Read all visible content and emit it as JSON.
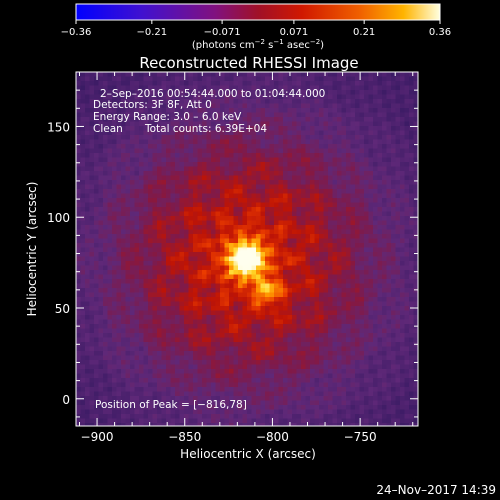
{
  "chart_data": {
    "type": "heatmap",
    "title": "Reconstructed RHESSI Image",
    "xlabel": "Heliocentric X (arcsec)",
    "ylabel": "Heliocentric Y (arcsec)",
    "xlim": [
      -912,
      -717
    ],
    "ylim": [
      -15,
      180
    ],
    "x_ticks": [
      -900,
      -850,
      -800,
      -750
    ],
    "y_ticks": [
      0,
      50,
      100,
      150
    ],
    "x_tick_labels": [
      "−900",
      "−850",
      "−800",
      "−750"
    ],
    "y_tick_labels": [
      "0",
      "50",
      "100",
      "150"
    ],
    "colorbar": {
      "ticks": [
        -0.36,
        -0.21,
        -0.071,
        0.071,
        0.21,
        0.36
      ],
      "tick_labels": [
        "−0.36",
        "−0.21",
        "−0.071",
        "0.071",
        "0.21",
        "0.36"
      ],
      "unit_main": "(photons cm",
      "unit_sup1": "−2",
      "unit_mid": " s",
      "unit_sup2": "−1",
      "unit_mid2": " asec",
      "unit_sup3": "−2",
      "unit_end": ")",
      "colormap": "blue-purple-red-yellow-white"
    },
    "annotations": {
      "time": "2–Sep–2016 00:54:44.000 to 01:04:44.000",
      "detectors": "Detectors: 3F 8F, Att 0",
      "energy": "Energy Range: 3.0 – 6.0 keV",
      "clean": "Clean",
      "counts": "Total counts: 6.39E+04",
      "peak": "Position of Peak = [−816,78]"
    },
    "peak": {
      "x": -816,
      "y": 78,
      "value": 0.36
    },
    "secondary_source": {
      "x": -804,
      "y": 60
    },
    "footer_date": "24–Nov–2017 14:39",
    "colors": {
      "background": "#000000",
      "low": "#0000ff",
      "mid_low": "#6a2a9a",
      "mid": "#cc1100",
      "high": "#ffcc00",
      "peak": "#ffffff"
    }
  }
}
